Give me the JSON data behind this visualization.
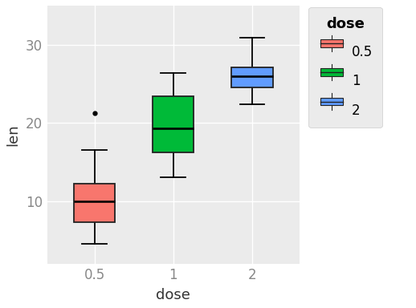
{
  "title": "",
  "xlabel": "dose",
  "ylabel": "len",
  "fig_bg": "#FFFFFF",
  "plot_bg": "#EBEBEB",
  "grid_color": "#FFFFFF",
  "cat_labels": [
    "0.5",
    "1",
    "2"
  ],
  "box_colors": [
    "#F8766D",
    "#00BA38",
    "#619CFF"
  ],
  "boxes": [
    {
      "label": "0.5",
      "q1": 7.3,
      "median": 10.0,
      "q3": 12.25,
      "whisker_low": 4.5,
      "whisker_high": 16.5,
      "outliers": [
        21.2
      ]
    },
    {
      "label": "1",
      "q1": 16.25,
      "median": 19.25,
      "q3": 23.375,
      "whisker_low": 13.0,
      "whisker_high": 26.4,
      "outliers": []
    },
    {
      "label": "2",
      "q1": 24.525,
      "median": 25.95,
      "q3": 27.075,
      "whisker_low": 22.4,
      "whisker_high": 30.9,
      "outliers": []
    }
  ],
  "ylim": [
    2,
    35
  ],
  "yticks": [
    10,
    20,
    30
  ],
  "legend_title": "dose",
  "legend_labels": [
    "0.5",
    "1",
    "2"
  ],
  "legend_colors": [
    "#F8766D",
    "#00BA38",
    "#619CFF"
  ],
  "legend_bg": "#EBEBEB",
  "box_width": 0.52,
  "linewidth": 1.3,
  "median_color": "#000000",
  "whisker_color": "#000000",
  "outlier_color": "#000000",
  "tick_color": "#888888",
  "axis_label_color": "#333333"
}
